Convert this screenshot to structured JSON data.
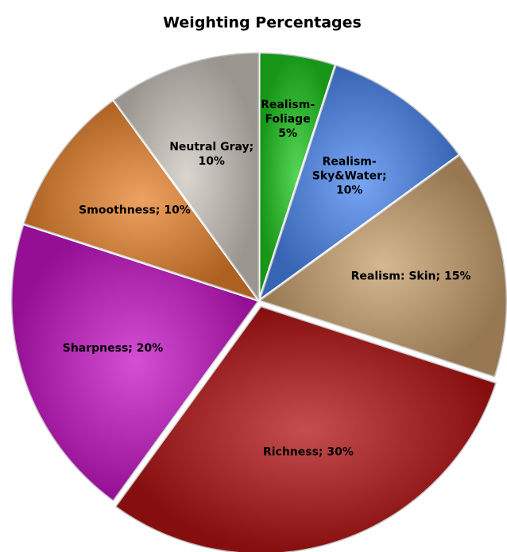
{
  "chart_data": {
    "type": "pie",
    "title": "Weighting Percentages",
    "values": [
      5,
      10,
      15,
      30,
      20,
      10,
      10
    ],
    "value_labels": [
      "Realism-\nFoliage\n5%",
      "Realism-\nSky&Water;\n10%",
      "Realism: Skin; 15%",
      "Richness; 30%",
      "Sharpness; 20%",
      "Smoothness; 10%",
      "Neutral Gray;\n10%"
    ],
    "colors": [
      "#1ec81e",
      "#4a86f0",
      "#c9a06e",
      "#b31212",
      "#c514c5",
      "#e8832e",
      "#cdc8bf"
    ]
  }
}
